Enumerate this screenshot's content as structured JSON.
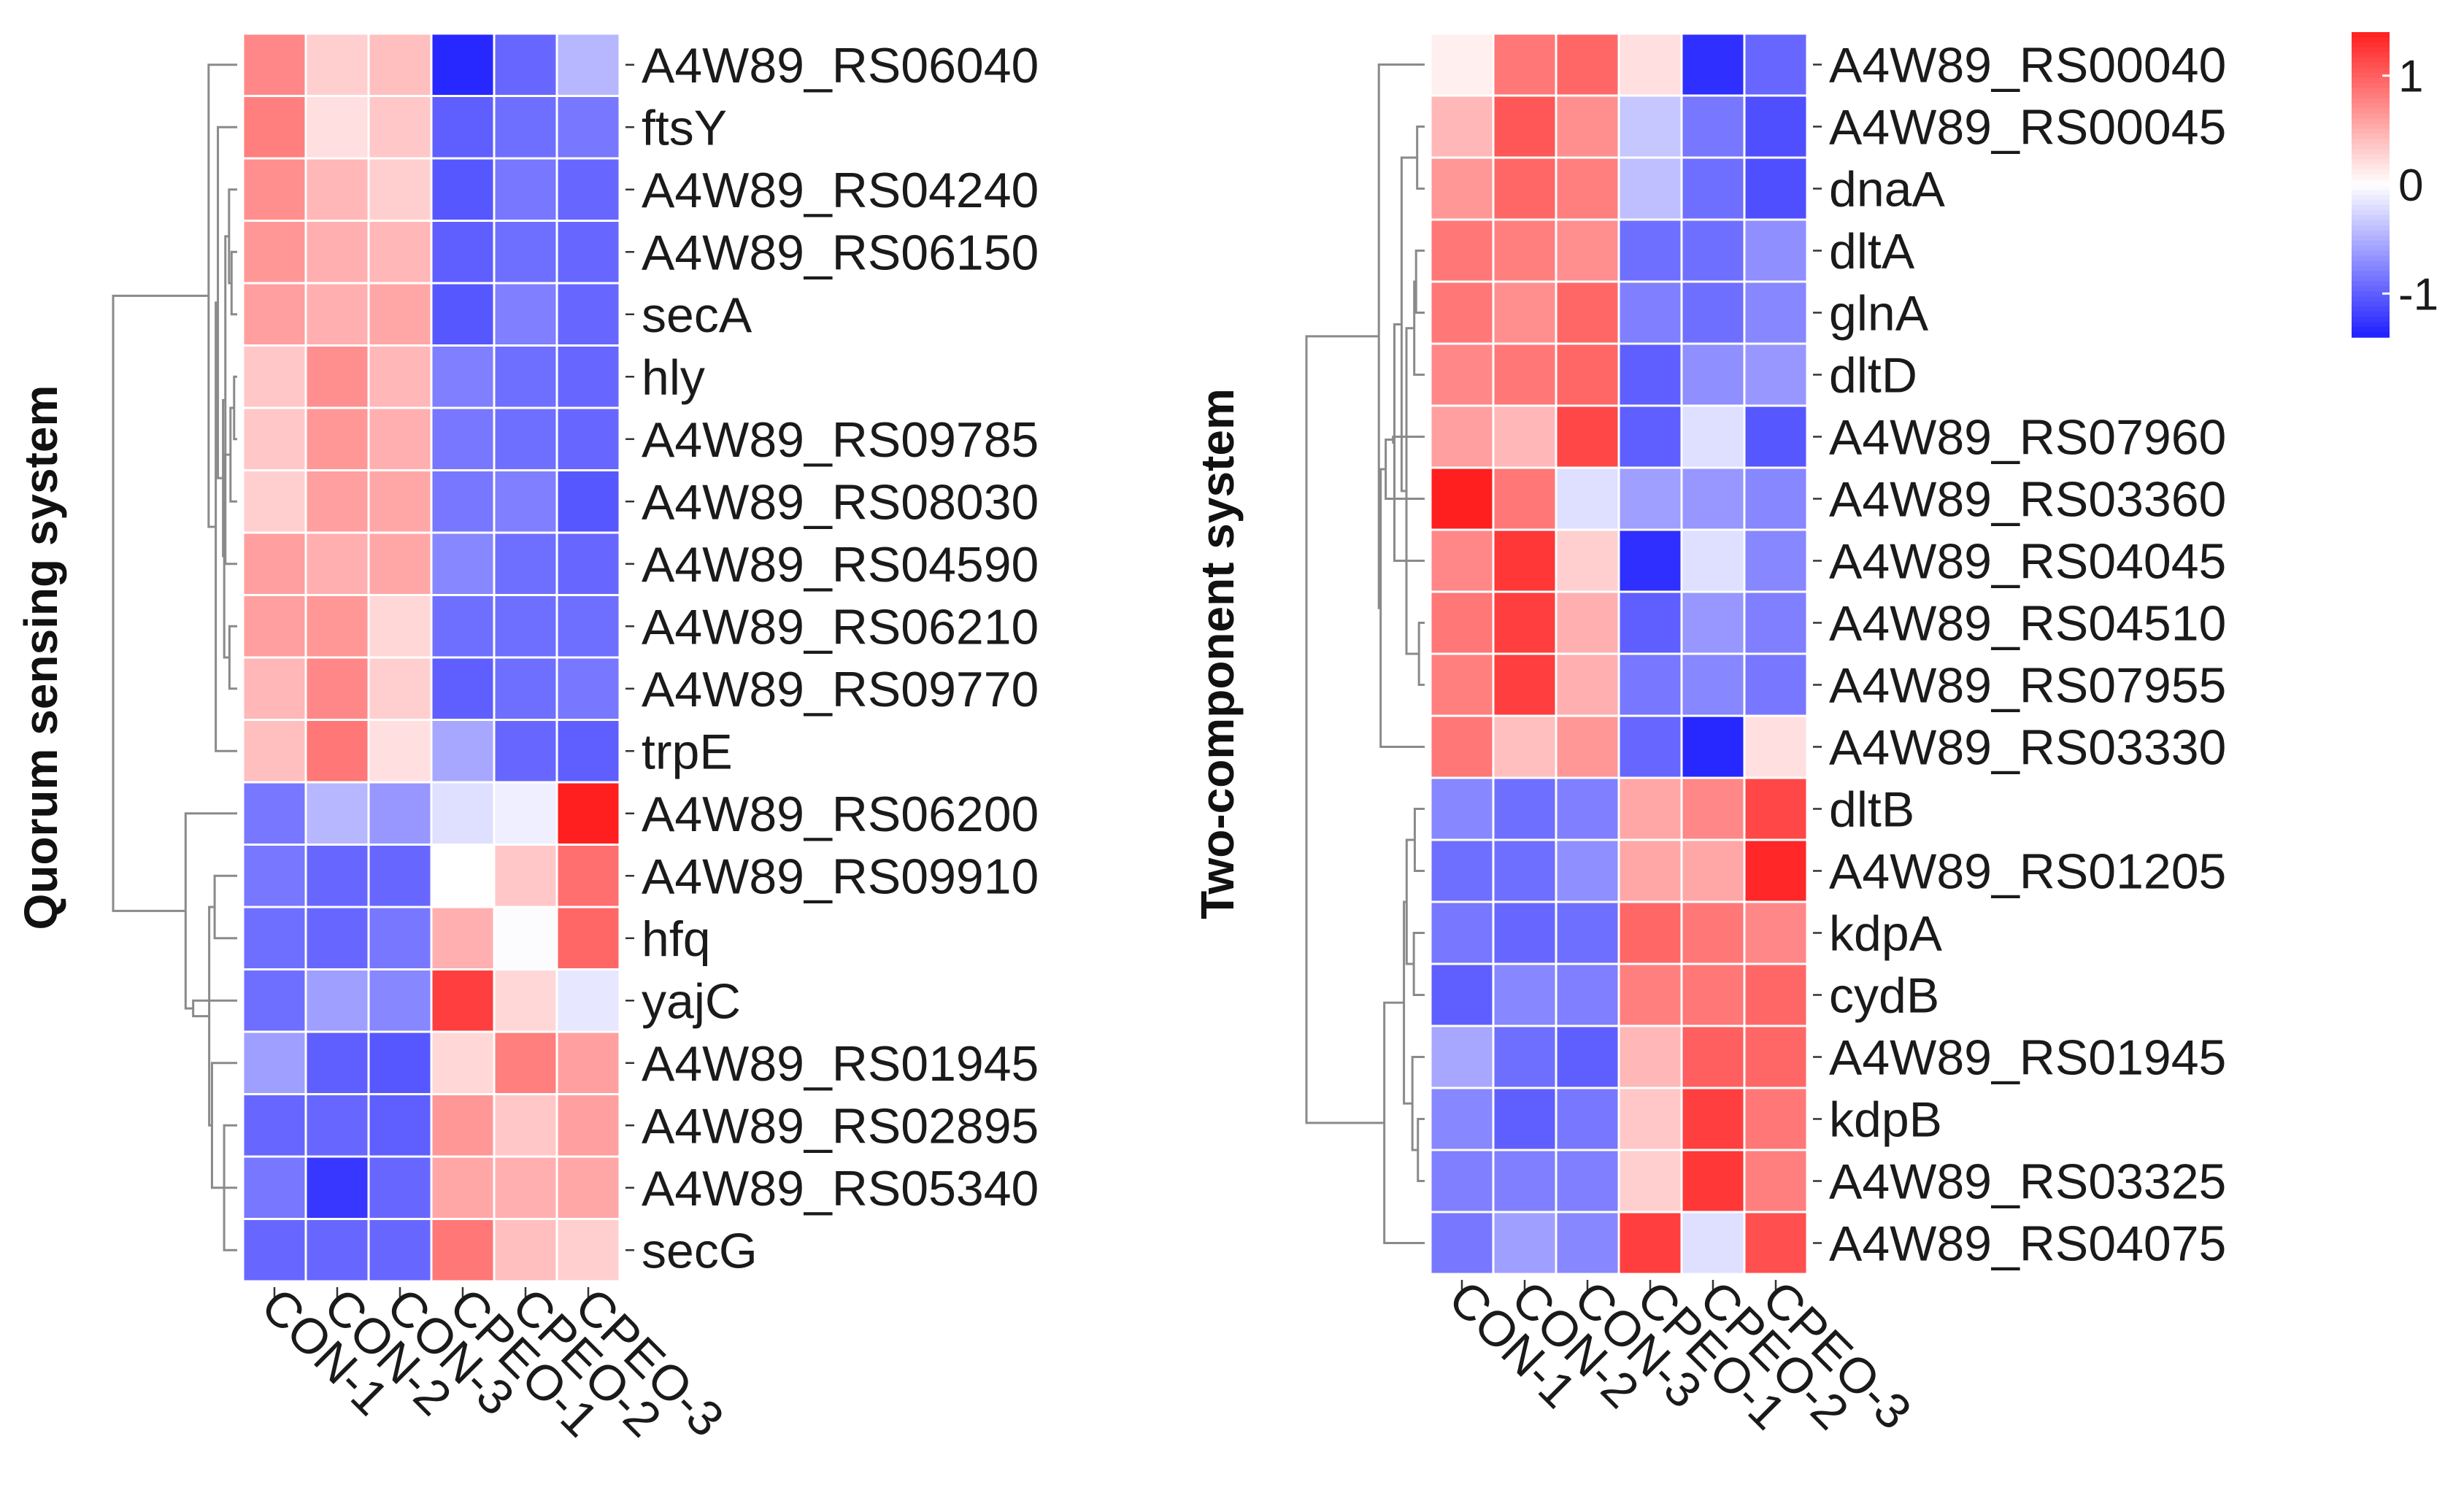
{
  "chart_data": [
    {
      "type": "heatmap",
      "ylabel": "Quorum sensing system",
      "columns": [
        "CON-1",
        "CON-2",
        "CON-3",
        "CPEO-1",
        "CPEO-2",
        "CPEO-3"
      ],
      "rows": [
        "A4W89_RS06040",
        "ftsY",
        "A4W89_RS04240",
        "A4W89_RS06150",
        "secA",
        "hly",
        "A4W89_RS09785",
        "A4W89_RS08030",
        "A4W89_RS04590",
        "A4W89_RS06210",
        "A4W89_RS09770",
        "trpE",
        "A4W89_RS06200",
        "A4W89_RS09910",
        "hfq",
        "yajC",
        "A4W89_RS01945",
        "A4W89_RS02895",
        "A4W89_RS05340",
        "secG"
      ],
      "values": [
        [
          0.75,
          0.3,
          0.4,
          -1.35,
          -0.95,
          -0.45
        ],
        [
          0.8,
          0.2,
          0.35,
          -1.0,
          -0.9,
          -0.85
        ],
        [
          0.7,
          0.45,
          0.3,
          -1.05,
          -0.85,
          -0.95
        ],
        [
          0.65,
          0.5,
          0.45,
          -1.0,
          -0.9,
          -0.95
        ],
        [
          0.6,
          0.5,
          0.55,
          -1.05,
          -0.8,
          -0.95
        ],
        [
          0.35,
          0.7,
          0.45,
          -0.8,
          -0.9,
          -0.95
        ],
        [
          0.35,
          0.65,
          0.5,
          -0.85,
          -0.9,
          -0.95
        ],
        [
          0.3,
          0.6,
          0.55,
          -0.85,
          -0.8,
          -1.05
        ],
        [
          0.6,
          0.5,
          0.55,
          -0.75,
          -0.9,
          -0.95
        ],
        [
          0.6,
          0.65,
          0.25,
          -0.9,
          -0.9,
          -0.9
        ],
        [
          0.45,
          0.75,
          0.3,
          -1.0,
          -0.9,
          -0.85
        ],
        [
          0.4,
          0.85,
          0.2,
          -0.55,
          -0.95,
          -1.0
        ],
        [
          -0.85,
          -0.45,
          -0.65,
          -0.2,
          -0.1,
          1.4
        ],
        [
          -0.85,
          -0.95,
          -0.95,
          0.0,
          0.35,
          0.9
        ],
        [
          -0.9,
          -0.95,
          -0.85,
          0.5,
          -0.02,
          0.95
        ],
        [
          -0.9,
          -0.6,
          -0.75,
          1.2,
          0.25,
          -0.15
        ],
        [
          -0.6,
          -1.0,
          -1.05,
          0.25,
          0.8,
          0.6
        ],
        [
          -0.95,
          -0.95,
          -1.0,
          0.65,
          0.35,
          0.6
        ],
        [
          -0.85,
          -1.25,
          -0.95,
          0.55,
          0.5,
          0.55
        ],
        [
          -0.95,
          -0.95,
          -0.95,
          0.85,
          0.4,
          0.3
        ]
      ],
      "color_range": [
        -1.4,
        1.4
      ]
    },
    {
      "type": "heatmap",
      "ylabel": "Two-component system",
      "columns": [
        "CON-1",
        "CON-2",
        "CON-3",
        "CPEO-1",
        "CPEO-2",
        "CPEO-3"
      ],
      "rows": [
        "A4W89_RS00040",
        "A4W89_RS00045",
        "dnaA",
        "dltA",
        "glnA",
        "dltD",
        "A4W89_RS07960",
        "A4W89_RS03360",
        "A4W89_RS04045",
        "A4W89_RS04510",
        "A4W89_RS07955",
        "A4W89_RS03330",
        "dltB",
        "A4W89_RS01205",
        "kdpA",
        "cydB",
        "A4W89_RS01945",
        "kdpB",
        "A4W89_RS03325",
        "A4W89_RS04075"
      ],
      "values": [
        [
          0.1,
          0.85,
          0.95,
          0.2,
          -1.3,
          -0.95
        ],
        [
          0.45,
          1.05,
          0.7,
          -0.35,
          -0.85,
          -1.1
        ],
        [
          0.65,
          0.95,
          0.8,
          -0.4,
          -0.9,
          -1.1
        ],
        [
          0.85,
          0.8,
          0.7,
          -0.9,
          -0.9,
          -0.7
        ],
        [
          0.85,
          0.7,
          0.95,
          -0.8,
          -0.9,
          -0.75
        ],
        [
          0.75,
          0.85,
          0.95,
          -1.0,
          -0.7,
          -0.65
        ],
        [
          0.6,
          0.45,
          1.15,
          -1.0,
          -0.2,
          -1.05
        ],
        [
          1.45,
          0.85,
          -0.2,
          -0.6,
          -0.65,
          -0.75
        ],
        [
          0.75,
          1.25,
          0.3,
          -1.3,
          -0.2,
          -0.75
        ],
        [
          0.85,
          1.2,
          0.5,
          -1.0,
          -0.65,
          -0.8
        ],
        [
          0.8,
          1.2,
          0.5,
          -0.85,
          -0.75,
          -0.85
        ],
        [
          0.85,
          0.4,
          0.65,
          -0.95,
          -1.35,
          0.2
        ],
        [
          -0.75,
          -0.9,
          -0.8,
          0.55,
          0.75,
          1.15
        ],
        [
          -0.9,
          -0.9,
          -0.7,
          0.55,
          0.55,
          1.35
        ],
        [
          -0.85,
          -0.95,
          -0.9,
          0.95,
          0.85,
          0.75
        ],
        [
          -1.0,
          -0.75,
          -0.8,
          0.8,
          0.85,
          0.95
        ],
        [
          -0.55,
          -0.9,
          -1.0,
          0.45,
          1.0,
          0.95
        ],
        [
          -0.75,
          -1.0,
          -0.85,
          0.35,
          1.2,
          0.85
        ],
        [
          -0.8,
          -0.8,
          -0.8,
          0.3,
          1.25,
          0.8
        ],
        [
          -0.85,
          -0.6,
          -0.75,
          1.2,
          -0.2,
          1.1
        ]
      ],
      "color_range": [
        -1.4,
        1.4
      ]
    }
  ],
  "colorbar": {
    "ticks": [
      "1",
      "0",
      "-1"
    ],
    "tick_values": [
      1,
      0,
      -1
    ],
    "colors": {
      "low": "#1f1fff",
      "mid": "#ffffff",
      "high": "#ff1f1f"
    }
  }
}
